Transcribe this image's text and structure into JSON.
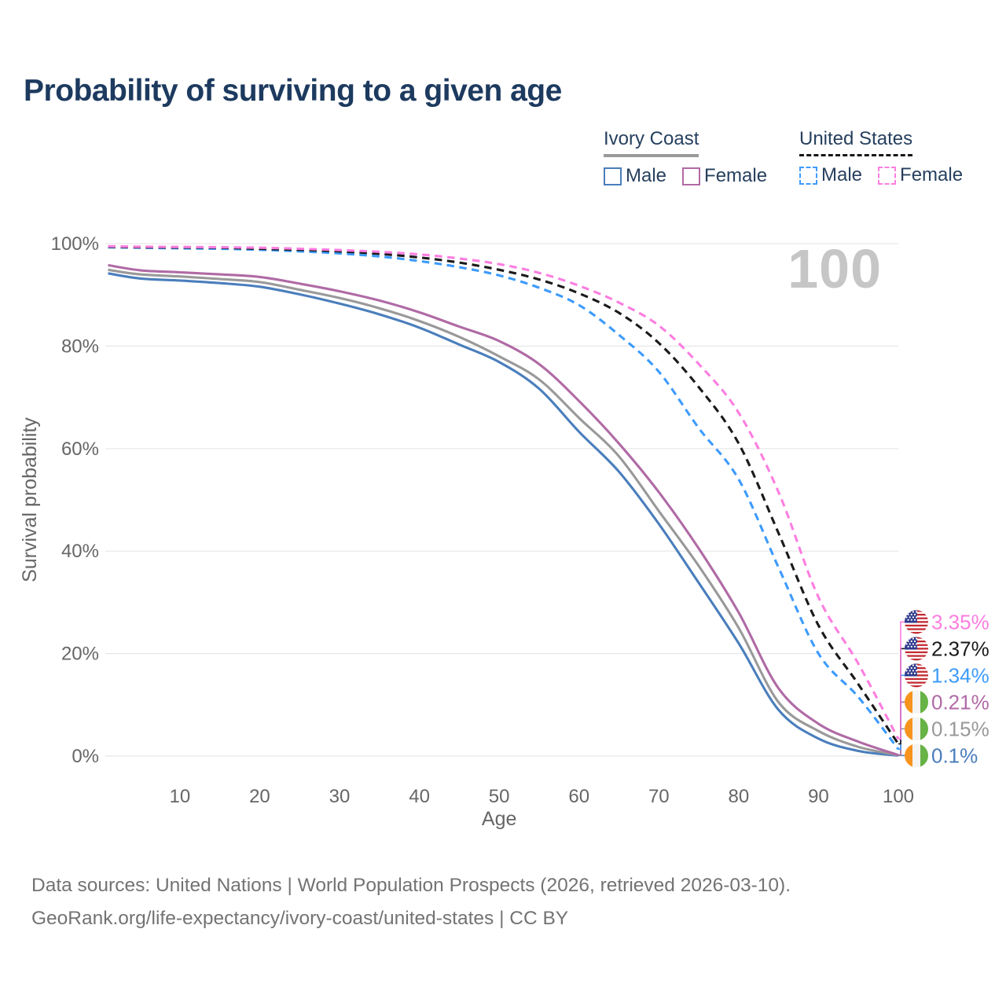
{
  "watermark": "100",
  "legend": {
    "groups": [
      {
        "label": "Ivory Coast",
        "line_style": "solid",
        "items": [
          {
            "label": "Male",
            "color": "#4a7ebc"
          },
          {
            "label": "Female",
            "color": "#b06aa5"
          }
        ]
      },
      {
        "label": "United States",
        "line_style": "dashed",
        "items": [
          {
            "label": "Male",
            "color": "#3d9bfd"
          },
          {
            "label": "Female",
            "color": "#fc7ee0"
          }
        ]
      }
    ]
  },
  "chart_data": {
    "type": "line",
    "title": "Probability of surviving to a given age",
    "xlabel": "Age",
    "ylabel": "Survival probability",
    "xlim": [
      0,
      100
    ],
    "ylim": [
      0,
      100
    ],
    "grid": "horizontal",
    "legend_position": "top-right",
    "x_ticks": [
      10,
      20,
      30,
      40,
      50,
      60,
      70,
      80,
      90,
      100
    ],
    "y_ticks": [
      0,
      20,
      40,
      60,
      80,
      100
    ],
    "y_tick_suffix": "%",
    "x": [
      1,
      5,
      10,
      15,
      20,
      25,
      30,
      35,
      40,
      45,
      50,
      55,
      60,
      65,
      70,
      75,
      80,
      85,
      90,
      95,
      100
    ],
    "series": [
      {
        "name": "Ivory Coast Male",
        "color": "#4a7ebc",
        "dash": false,
        "flag": "civ",
        "end_label": "0.1%",
        "values": [
          94.2,
          93.2,
          92.8,
          92.3,
          91.6,
          90.1,
          88.3,
          86.2,
          83.6,
          80.3,
          76.9,
          71.7,
          63.3,
          55.5,
          45.3,
          33.8,
          22.0,
          9.0,
          3.4,
          1.0,
          0.1
        ]
      },
      {
        "name": "Ivory Coast Both sexes",
        "color": "#999999",
        "dash": false,
        "flag": "civ",
        "end_label": "0.15%",
        "values": [
          94.9,
          94.0,
          93.6,
          93.1,
          92.5,
          91.0,
          89.4,
          87.4,
          84.9,
          81.8,
          78.0,
          73.5,
          66.0,
          58.5,
          47.8,
          37.1,
          25.0,
          10.5,
          4.9,
          1.8,
          0.15
        ]
      },
      {
        "name": "Ivory Coast Female",
        "color": "#b06aa5",
        "dash": false,
        "flag": "civ",
        "end_label": "0.21%",
        "values": [
          95.8,
          94.8,
          94.4,
          94.0,
          93.5,
          92.2,
          90.7,
          88.9,
          86.6,
          83.8,
          81.0,
          76.5,
          69.3,
          61.0,
          51.5,
          40.5,
          28.0,
          13.2,
          6.3,
          2.8,
          0.21
        ]
      },
      {
        "name": "United States Male",
        "color": "#3d9bfd",
        "dash": true,
        "flag": "us",
        "end_label": "1.34%",
        "values": [
          99.3,
          99.2,
          99.1,
          99.0,
          98.8,
          98.5,
          98.1,
          97.5,
          96.6,
          95.4,
          93.8,
          91.4,
          88.0,
          82.2,
          75.0,
          64.0,
          54.0,
          36.8,
          20.0,
          11.5,
          1.34
        ]
      },
      {
        "name": "United States Both sexes",
        "color": "#1a1a1a",
        "dash": true,
        "flag": "us",
        "end_label": "2.37%",
        "values": [
          99.4,
          99.3,
          99.25,
          99.2,
          99.0,
          98.8,
          98.5,
          98.0,
          97.3,
          96.3,
          94.9,
          93.0,
          90.3,
          86.5,
          80.6,
          72.0,
          61.0,
          43.5,
          25.5,
          14.0,
          2.37
        ]
      },
      {
        "name": "United States Female",
        "color": "#fc7ee0",
        "dash": true,
        "flag": "us",
        "end_label": "3.35%",
        "values": [
          99.5,
          99.4,
          99.35,
          99.3,
          99.2,
          99.0,
          98.75,
          98.4,
          97.9,
          97.1,
          96.0,
          94.3,
          91.8,
          88.5,
          84.0,
          76.5,
          67.0,
          51.5,
          31.0,
          18.0,
          3.35
        ]
      }
    ]
  },
  "footer": {
    "line1": "Data sources: United Nations | World Population Prospects (2026, retrieved 2026-03-10).",
    "line2": "GeoRank.org/life-expectancy/ivory-coast/united-states | CC BY"
  }
}
